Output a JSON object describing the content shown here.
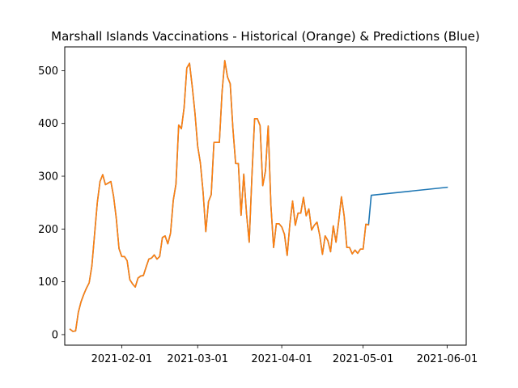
{
  "chart_data": {
    "type": "line",
    "title": "Marshall Islands Vaccinations - Historical (Orange) & Predictions (Blue)",
    "xlabel": "",
    "ylabel": "",
    "xlim": [
      "2021-01-11",
      "2021-06-08"
    ],
    "ylim": [
      -20,
      545
    ],
    "x_ticks": [
      "2021-02-01",
      "2021-03-01",
      "2021-04-01",
      "2021-05-01",
      "2021-06-01"
    ],
    "y_ticks": [
      0,
      100,
      200,
      300,
      400,
      500
    ],
    "grid": false,
    "series": [
      {
        "color": "#1f77b4",
        "points": [
          [
            "2021-01-13",
            10
          ],
          [
            "2021-01-14",
            6
          ],
          [
            "2021-01-15",
            7
          ],
          [
            "2021-01-16",
            42
          ],
          [
            "2021-01-17",
            62
          ],
          [
            "2021-01-18",
            76
          ],
          [
            "2021-01-19",
            88
          ],
          [
            "2021-01-20",
            98
          ],
          [
            "2021-01-21",
            130
          ],
          [
            "2021-01-22",
            190
          ],
          [
            "2021-01-23",
            250
          ],
          [
            "2021-01-24",
            290
          ],
          [
            "2021-01-25",
            303
          ],
          [
            "2021-01-26",
            284
          ],
          [
            "2021-01-27",
            287
          ],
          [
            "2021-01-28",
            290
          ],
          [
            "2021-01-29",
            262
          ],
          [
            "2021-01-30",
            220
          ],
          [
            "2021-01-31",
            163
          ],
          [
            "2021-02-01",
            148
          ],
          [
            "2021-02-02",
            148
          ],
          [
            "2021-02-03",
            140
          ],
          [
            "2021-02-04",
            104
          ],
          [
            "2021-02-05",
            96
          ],
          [
            "2021-02-06",
            90
          ],
          [
            "2021-02-07",
            107
          ],
          [
            "2021-02-08",
            111
          ],
          [
            "2021-02-09",
            112
          ],
          [
            "2021-02-10",
            128
          ],
          [
            "2021-02-11",
            143
          ],
          [
            "2021-02-12",
            145
          ],
          [
            "2021-02-13",
            151
          ],
          [
            "2021-02-14",
            143
          ],
          [
            "2021-02-15",
            148
          ],
          [
            "2021-02-16",
            184
          ],
          [
            "2021-02-17",
            187
          ],
          [
            "2021-02-18",
            172
          ],
          [
            "2021-02-19",
            192
          ],
          [
            "2021-02-20",
            254
          ],
          [
            "2021-02-21",
            285
          ],
          [
            "2021-02-22",
            397
          ],
          [
            "2021-02-23",
            390
          ],
          [
            "2021-02-24",
            430
          ],
          [
            "2021-02-25",
            505
          ],
          [
            "2021-02-26",
            514
          ],
          [
            "2021-02-27",
            470
          ],
          [
            "2021-02-28",
            420
          ],
          [
            "2021-03-01",
            357
          ],
          [
            "2021-03-02",
            325
          ],
          [
            "2021-03-03",
            270
          ],
          [
            "2021-03-04",
            195
          ],
          [
            "2021-03-05",
            252
          ],
          [
            "2021-03-06",
            265
          ],
          [
            "2021-03-07",
            364
          ],
          [
            "2021-03-08",
            364
          ],
          [
            "2021-03-09",
            364
          ],
          [
            "2021-03-10",
            460
          ],
          [
            "2021-03-11",
            519
          ],
          [
            "2021-03-12",
            488
          ],
          [
            "2021-03-13",
            475
          ],
          [
            "2021-03-14",
            390
          ],
          [
            "2021-03-15",
            324
          ],
          [
            "2021-03-16",
            324
          ],
          [
            "2021-03-17",
            226
          ],
          [
            "2021-03-18",
            304
          ],
          [
            "2021-03-19",
            230
          ],
          [
            "2021-03-20",
            175
          ],
          [
            "2021-03-21",
            300
          ],
          [
            "2021-03-22",
            409
          ],
          [
            "2021-03-23",
            409
          ],
          [
            "2021-03-24",
            396
          ],
          [
            "2021-03-25",
            282
          ],
          [
            "2021-03-26",
            310
          ],
          [
            "2021-03-27",
            395
          ],
          [
            "2021-03-28",
            245
          ],
          [
            "2021-03-29",
            165
          ],
          [
            "2021-03-30",
            210
          ],
          [
            "2021-03-31",
            210
          ],
          [
            "2021-04-01",
            204
          ],
          [
            "2021-04-02",
            190
          ],
          [
            "2021-04-03",
            150
          ],
          [
            "2021-04-04",
            210
          ],
          [
            "2021-04-05",
            253
          ],
          [
            "2021-04-06",
            207
          ],
          [
            "2021-04-07",
            230
          ],
          [
            "2021-04-08",
            230
          ],
          [
            "2021-04-09",
            260
          ],
          [
            "2021-04-10",
            225
          ],
          [
            "2021-04-11",
            238
          ],
          [
            "2021-04-12",
            198
          ],
          [
            "2021-04-13",
            207
          ],
          [
            "2021-04-14",
            213
          ],
          [
            "2021-04-15",
            188
          ],
          [
            "2021-04-16",
            152
          ],
          [
            "2021-04-17",
            187
          ],
          [
            "2021-04-18",
            178
          ],
          [
            "2021-04-19",
            157
          ],
          [
            "2021-04-20",
            206
          ],
          [
            "2021-04-21",
            175
          ],
          [
            "2021-04-22",
            215
          ],
          [
            "2021-04-23",
            261
          ],
          [
            "2021-04-24",
            225
          ],
          [
            "2021-04-25",
            165
          ],
          [
            "2021-04-26",
            165
          ],
          [
            "2021-04-27",
            153
          ],
          [
            "2021-04-28",
            160
          ],
          [
            "2021-04-29",
            154
          ],
          [
            "2021-04-30",
            162
          ],
          [
            "2021-05-01",
            162
          ],
          [
            "2021-05-02",
            209
          ],
          [
            "2021-05-03",
            208
          ],
          [
            "2021-05-04",
            264
          ],
          [
            "2021-06-01",
            279
          ]
        ]
      },
      {
        "color": "#ff7f0e",
        "points": [
          [
            "2021-01-13",
            10
          ],
          [
            "2021-01-14",
            6
          ],
          [
            "2021-01-15",
            7
          ],
          [
            "2021-01-16",
            42
          ],
          [
            "2021-01-17",
            62
          ],
          [
            "2021-01-18",
            76
          ],
          [
            "2021-01-19",
            88
          ],
          [
            "2021-01-20",
            98
          ],
          [
            "2021-01-21",
            130
          ],
          [
            "2021-01-22",
            190
          ],
          [
            "2021-01-23",
            250
          ],
          [
            "2021-01-24",
            290
          ],
          [
            "2021-01-25",
            303
          ],
          [
            "2021-01-26",
            284
          ],
          [
            "2021-01-27",
            287
          ],
          [
            "2021-01-28",
            290
          ],
          [
            "2021-01-29",
            262
          ],
          [
            "2021-01-30",
            220
          ],
          [
            "2021-01-31",
            163
          ],
          [
            "2021-02-01",
            148
          ],
          [
            "2021-02-02",
            148
          ],
          [
            "2021-02-03",
            140
          ],
          [
            "2021-02-04",
            104
          ],
          [
            "2021-02-05",
            96
          ],
          [
            "2021-02-06",
            90
          ],
          [
            "2021-02-07",
            107
          ],
          [
            "2021-02-08",
            111
          ],
          [
            "2021-02-09",
            112
          ],
          [
            "2021-02-10",
            128
          ],
          [
            "2021-02-11",
            143
          ],
          [
            "2021-02-12",
            145
          ],
          [
            "2021-02-13",
            151
          ],
          [
            "2021-02-14",
            143
          ],
          [
            "2021-02-15",
            148
          ],
          [
            "2021-02-16",
            184
          ],
          [
            "2021-02-17",
            187
          ],
          [
            "2021-02-18",
            172
          ],
          [
            "2021-02-19",
            192
          ],
          [
            "2021-02-20",
            254
          ],
          [
            "2021-02-21",
            285
          ],
          [
            "2021-02-22",
            397
          ],
          [
            "2021-02-23",
            390
          ],
          [
            "2021-02-24",
            430
          ],
          [
            "2021-02-25",
            505
          ],
          [
            "2021-02-26",
            514
          ],
          [
            "2021-02-27",
            470
          ],
          [
            "2021-02-28",
            420
          ],
          [
            "2021-03-01",
            357
          ],
          [
            "2021-03-02",
            325
          ],
          [
            "2021-03-03",
            270
          ],
          [
            "2021-03-04",
            195
          ],
          [
            "2021-03-05",
            252
          ],
          [
            "2021-03-06",
            265
          ],
          [
            "2021-03-07",
            364
          ],
          [
            "2021-03-08",
            364
          ],
          [
            "2021-03-09",
            364
          ],
          [
            "2021-03-10",
            460
          ],
          [
            "2021-03-11",
            519
          ],
          [
            "2021-03-12",
            488
          ],
          [
            "2021-03-13",
            475
          ],
          [
            "2021-03-14",
            390
          ],
          [
            "2021-03-15",
            324
          ],
          [
            "2021-03-16",
            324
          ],
          [
            "2021-03-17",
            226
          ],
          [
            "2021-03-18",
            304
          ],
          [
            "2021-03-19",
            230
          ],
          [
            "2021-03-20",
            175
          ],
          [
            "2021-03-21",
            300
          ],
          [
            "2021-03-22",
            409
          ],
          [
            "2021-03-23",
            409
          ],
          [
            "2021-03-24",
            396
          ],
          [
            "2021-03-25",
            282
          ],
          [
            "2021-03-26",
            310
          ],
          [
            "2021-03-27",
            395
          ],
          [
            "2021-03-28",
            245
          ],
          [
            "2021-03-29",
            165
          ],
          [
            "2021-03-30",
            210
          ],
          [
            "2021-03-31",
            210
          ],
          [
            "2021-04-01",
            204
          ],
          [
            "2021-04-02",
            190
          ],
          [
            "2021-04-03",
            150
          ],
          [
            "2021-04-04",
            210
          ],
          [
            "2021-04-05",
            253
          ],
          [
            "2021-04-06",
            207
          ],
          [
            "2021-04-07",
            230
          ],
          [
            "2021-04-08",
            230
          ],
          [
            "2021-04-09",
            260
          ],
          [
            "2021-04-10",
            225
          ],
          [
            "2021-04-11",
            238
          ],
          [
            "2021-04-12",
            198
          ],
          [
            "2021-04-13",
            207
          ],
          [
            "2021-04-14",
            213
          ],
          [
            "2021-04-15",
            188
          ],
          [
            "2021-04-16",
            152
          ],
          [
            "2021-04-17",
            187
          ],
          [
            "2021-04-18",
            178
          ],
          [
            "2021-04-19",
            157
          ],
          [
            "2021-04-20",
            206
          ],
          [
            "2021-04-21",
            175
          ],
          [
            "2021-04-22",
            215
          ],
          [
            "2021-04-23",
            261
          ],
          [
            "2021-04-24",
            225
          ],
          [
            "2021-04-25",
            165
          ],
          [
            "2021-04-26",
            165
          ],
          [
            "2021-04-27",
            153
          ],
          [
            "2021-04-28",
            160
          ],
          [
            "2021-04-29",
            154
          ],
          [
            "2021-04-30",
            162
          ],
          [
            "2021-05-01",
            162
          ],
          [
            "2021-05-02",
            209
          ],
          [
            "2021-05-03",
            208
          ]
        ]
      }
    ]
  }
}
